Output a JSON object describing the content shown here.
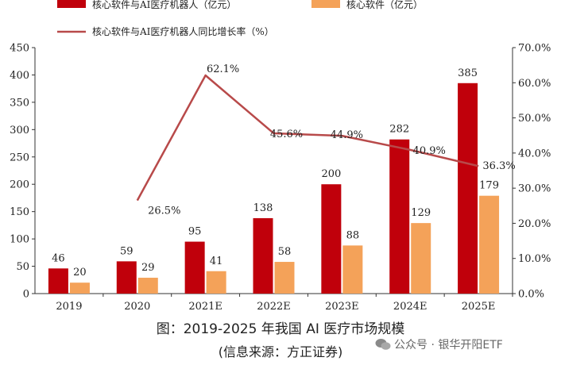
{
  "chart_data": {
    "type": "bar",
    "categories": [
      "2019",
      "2020",
      "2021E",
      "2022E",
      "2023E",
      "2024E",
      "2025E"
    ],
    "series": [
      {
        "name": "核心软件与AI医疗机器人（亿元）",
        "type": "bar",
        "axis": "left",
        "color": "#c0000b",
        "values": [
          46,
          59,
          95,
          138,
          200,
          282,
          385
        ]
      },
      {
        "name": "核心软件（亿元）",
        "type": "bar",
        "axis": "left",
        "color": "#f4a259",
        "values": [
          20,
          29,
          41,
          58,
          88,
          129,
          179
        ]
      },
      {
        "name": "核心软件与AI医疗机器人同比增长率（%）",
        "type": "line",
        "axis": "right",
        "color": "#b84a4a",
        "values": [
          null,
          26.5,
          62.1,
          45.6,
          44.9,
          40.9,
          36.3
        ]
      }
    ],
    "bar_labels": {
      "s0": [
        "46",
        "59",
        "95",
        "138",
        "200",
        "282",
        "385"
      ],
      "s1": [
        "20",
        "29",
        "41",
        "58",
        "88",
        "129",
        "179"
      ]
    },
    "line_labels": [
      "",
      "26.5%",
      "62.1%",
      "45.6%",
      "44.9%",
      "40.9%",
      "36.3%"
    ],
    "left_axis": {
      "ylim": [
        0,
        450
      ],
      "ticks": [
        "0",
        "50",
        "100",
        "150",
        "200",
        "250",
        "300",
        "350",
        "400",
        "450"
      ]
    },
    "right_axis": {
      "ylim": [
        0,
        70
      ],
      "ticks": [
        "0.0%",
        "10.0%",
        "20.0%",
        "30.0%",
        "40.0%",
        "50.0%",
        "60.0%",
        "70.0%"
      ]
    },
    "legend_position": "top-left"
  },
  "caption": {
    "title": "图：2019-2025 年我国 AI 医疗市场规模",
    "source": "(信息来源：方正证券)"
  },
  "watermark": {
    "text": "公众号 · 银华开阳ETF",
    "icon": "wechat-icon"
  }
}
